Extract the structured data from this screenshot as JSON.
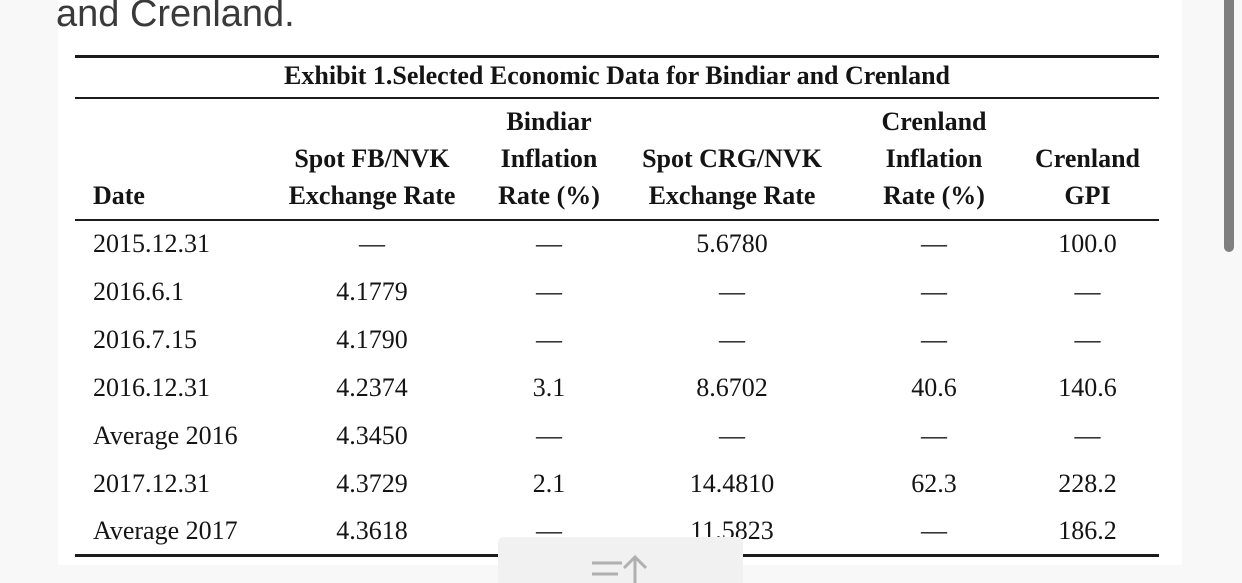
{
  "page": {
    "intro_text": "and Crenland.",
    "background_color": "#f8f8f8",
    "panel_color": "#ffffff",
    "text_color": "#141414",
    "intro_text_color": "#3a3a3a",
    "rule_color": "#1c1c1c",
    "scrollbar_color": "#7f7f7f",
    "overlay_color": "#f1f1f1",
    "overlay_icon_color": "#b0b0b0",
    "overlay_icon": "scroll-to-top-icon"
  },
  "table": {
    "title": "Exhibit 1.Selected Economic Data for Bindiar and Crenland",
    "headers": [
      "Date",
      "Spot FB/NVK\nExchange Rate",
      "Bindiar\nInflation\nRate (%)",
      "Spot CRG/NVK\nExchange Rate",
      "Crenland\nInflation\nRate (%)",
      "Crenland\nGPI"
    ],
    "rows": [
      [
        "2015.12.31",
        "—",
        "—",
        "5.6780",
        "—",
        "100.0"
      ],
      [
        "2016.6.1",
        "4.1779",
        "—",
        "—",
        "—",
        "—"
      ],
      [
        "2016.7.15",
        "4.1790",
        "—",
        "—",
        "—",
        "—"
      ],
      [
        "2016.12.31",
        "4.2374",
        "3.1",
        "8.6702",
        "40.6",
        "140.6"
      ],
      [
        "Average 2016",
        "4.3450",
        "—",
        "—",
        "—",
        "—"
      ],
      [
        "2017.12.31",
        "4.3729",
        "2.1",
        "14.4810",
        "62.3",
        "228.2"
      ],
      [
        "Average 2017",
        "4.3618",
        "—",
        "11.5823",
        "—",
        "186.2"
      ]
    ]
  }
}
